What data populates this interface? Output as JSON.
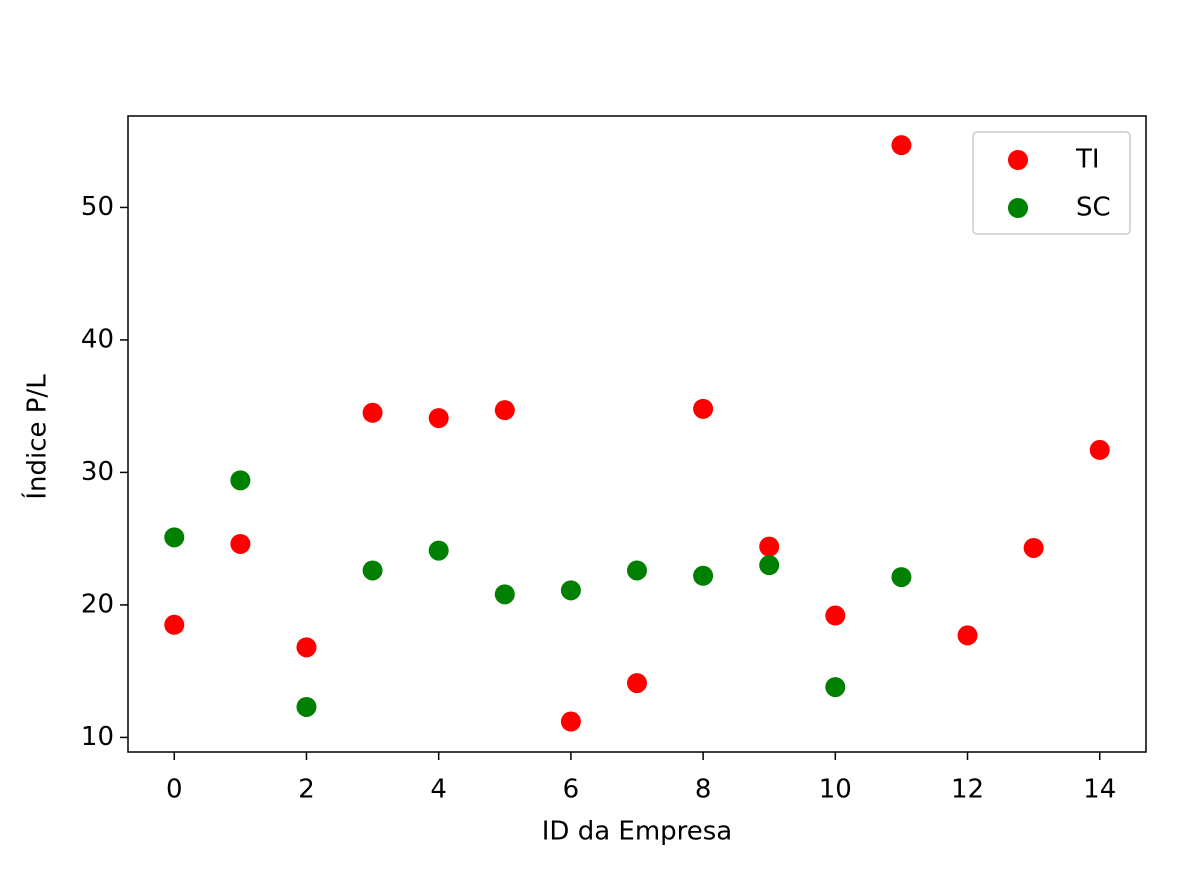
{
  "chart_data": {
    "type": "scatter",
    "x_label": "ID da Empresa",
    "y_label": "Índice P/L",
    "series": [
      {
        "name": "TI",
        "color": "#ff0000",
        "x": [
          0,
          1,
          2,
          3,
          4,
          5,
          6,
          7,
          8,
          9,
          10,
          11,
          12,
          13,
          14
        ],
        "values": [
          18.5,
          24.6,
          16.8,
          34.5,
          34.1,
          34.7,
          11.2,
          14.1,
          34.8,
          24.4,
          19.2,
          54.7,
          17.7,
          24.3,
          31.7
        ]
      },
      {
        "name": "SC",
        "color": "#008000",
        "x": [
          0,
          1,
          2,
          3,
          4,
          5,
          6,
          7,
          8,
          9,
          10,
          11
        ],
        "values": [
          25.1,
          29.4,
          12.3,
          22.6,
          24.1,
          20.8,
          21.1,
          22.6,
          22.2,
          23.0,
          13.8,
          22.1
        ]
      }
    ],
    "xlim": [
      -0.7,
      14.7
    ],
    "xticks": [
      0,
      2,
      4,
      6,
      8,
      10,
      12,
      14
    ],
    "ylim": [
      8.9,
      56.9
    ],
    "yticks": [
      10,
      20,
      30,
      40,
      50
    ],
    "grid": false,
    "legend_position": "upper right"
  }
}
